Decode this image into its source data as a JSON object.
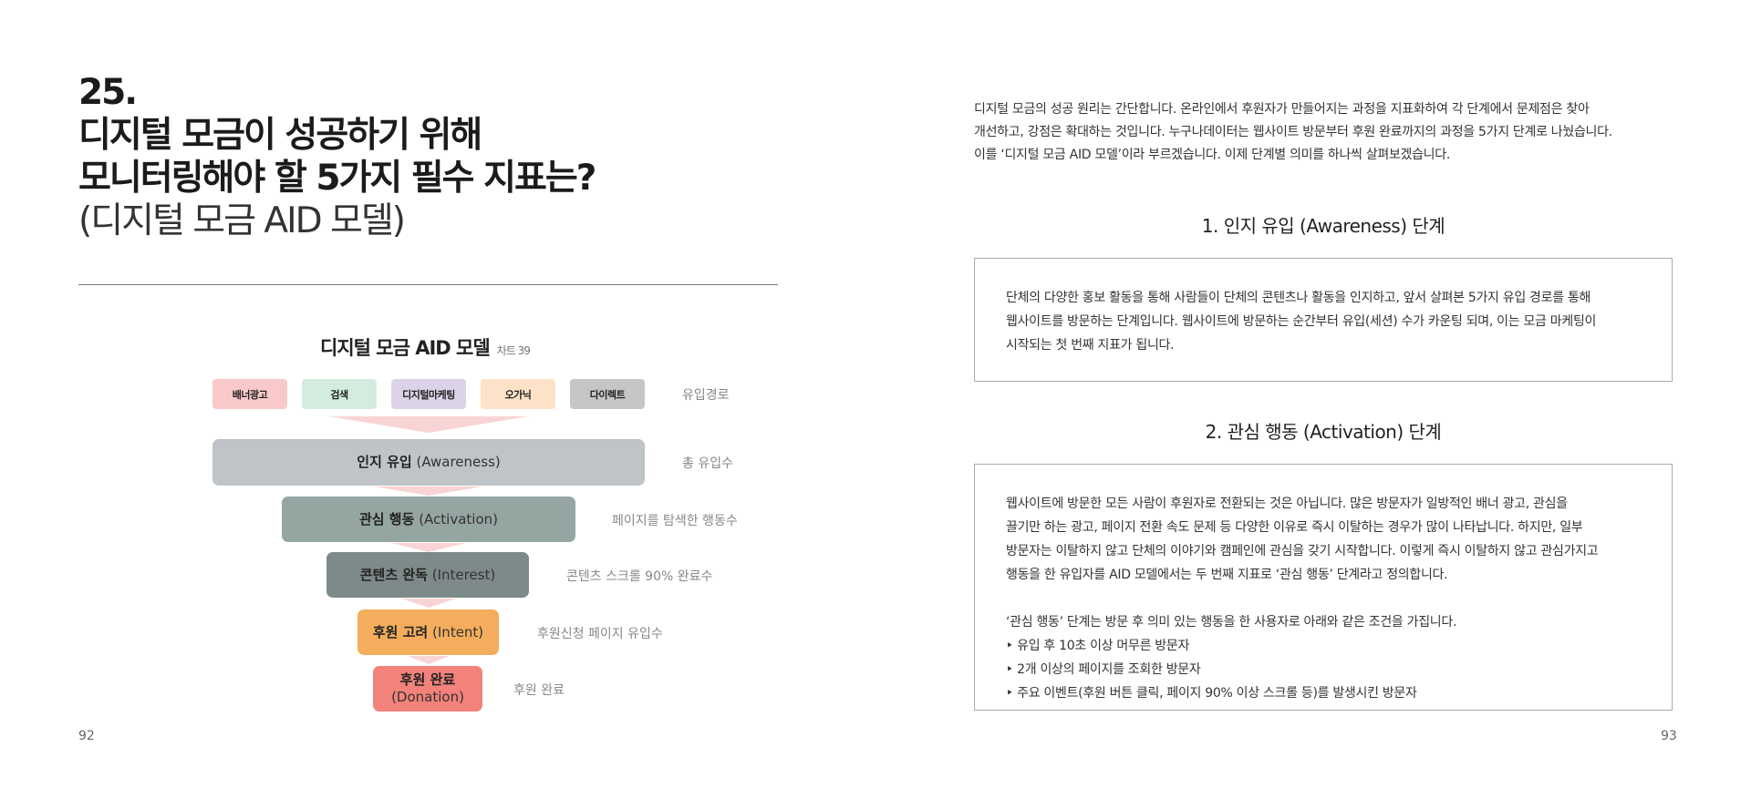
{
  "left_page": {
    "title_lines": [
      "25.",
      "디지털 모금이 성공하기 위해",
      "모니터링해야 할 5가지 필수 지표는?"
    ],
    "subtitle": "(디지털 모금 AID 모델)",
    "chart": {
      "title": "디지털 모금 AID 모델",
      "number": "차트 39",
      "channels": [
        {
          "label": "배너광고",
          "color": "#f9c9c9"
        },
        {
          "label": "검색",
          "color": "#d3ecdf"
        },
        {
          "label": "디지털마케팅",
          "color": "#dcd3e8"
        },
        {
          "label": "오가닉",
          "color": "#fde2c7"
        },
        {
          "label": "다이렉트",
          "color": "#c4c6c7"
        }
      ],
      "channels_label": "유입경로",
      "stages": [
        {
          "ko": "인지 유입",
          "en": "(Awareness)",
          "metric": "총 유입수",
          "color": "#bec4c7"
        },
        {
          "ko": "관심 행동",
          "en": "(Activation)",
          "metric": "페이지를 탐색한 행동수",
          "color": "#94a5a2"
        },
        {
          "ko": "콘텐츠 완독",
          "en": "(Interest)",
          "metric": "콘텐츠 스크롤 90% 완료수",
          "color": "#7e8a89"
        },
        {
          "ko": "후원 고려",
          "en": "(Intent)",
          "metric": "후원신청 페이지 유입수",
          "color": "#f4ad5c"
        },
        {
          "ko": "후원 완료",
          "en": "(Donation)",
          "metric": "후원 완료",
          "color": "#f2827a"
        }
      ]
    },
    "page_number": "92"
  },
  "right_page": {
    "intro": [
      "디지털 모금의 성공 원리는 간단합니다. 온라인에서 후원자가 만들어지는 과정을 지표화하여 각 단계에서 문제점은 찾아",
      "개선하고, 강점은 확대하는 것입니다. 누구나데이터는 웹사이트 방문부터 후원 완료까지의 과정을 5가지 단계로 나눴습니다.",
      "이를 ‘디지털 모금 AID 모델’이라 부르겠습니다. 이제 단계별 의미를 하나씩 살펴보겠습니다."
    ],
    "section1": {
      "heading": "1. 인지 유입 (Awareness) 단계",
      "lines": [
        "단체의 다양한 홍보 활동을 통해 사람들이 단체의 콘텐츠나 활동을 인지하고, 앞서 살펴본 5가지 유입 경로를 통해",
        "웹사이트를 방문하는 단계입니다. 웹사이트에 방문하는 순간부터 유입(세션) 수가 카운팅 되며, 이는 모금 마케팅이",
        "시작되는 첫 번째 지표가 됩니다."
      ]
    },
    "section2": {
      "heading": "2. 관심 행동 (Activation) 단계",
      "lines": [
        "웹사이트에 방문한 모든 사람이 후원자로 전환되는 것은 아닙니다. 많은 방문자가 일방적인 배너 광고, 관심을",
        "끌기만 하는 광고, 페이지 전환 속도 문제 등 다양한 이유로 즉시 이탈하는 경우가 많이 나타납니다. 하지만, 일부",
        "방문자는 이탈하지 않고 단체의 이야기와 캠페인에 관심을 갖기 시작합니다. 이렇게 즉시 이탈하지 않고 관심가지고",
        "행동을 한 유입자를 AID 모델에서는 두 번째 지표로 ‘관심 행동’ 단계라고 정의합니다."
      ],
      "criteria_intro": "‘관심 행동’ 단계는 방문 후 의미 있는 행동을 한 사용자로 아래와 같은 조건을 가집니다.",
      "criteria": [
        "‣ 유입 후 10초 이상 머무른 방문자",
        "‣ 2개 이상의 페이지를 조회한 방문자",
        "‣ 주요 이벤트(후원 버튼 클릭, 페이지 90% 이상 스크롤 등)를 발생시킨 방문자"
      ]
    },
    "page_number": "93"
  }
}
